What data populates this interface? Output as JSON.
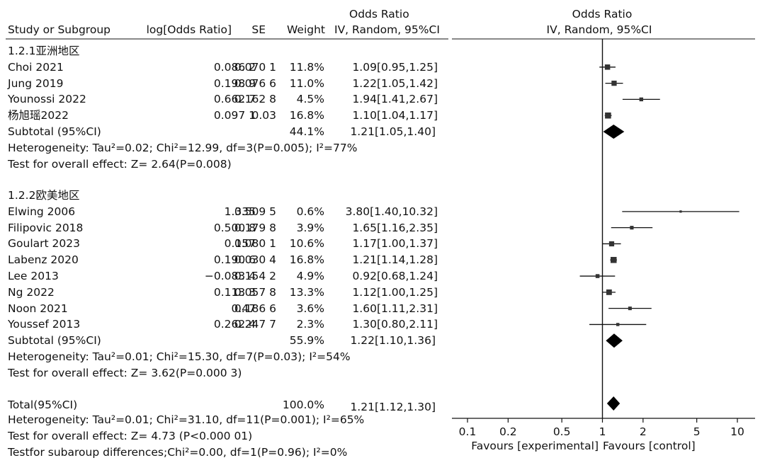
{
  "header": {
    "study": "Study or Subgroup",
    "logor": "log[Odds Ratio]",
    "se": "SE",
    "weight": "Weight",
    "or_title": "Odds Ratio",
    "or_method": "IV, Random, 95%CI",
    "plot_title": "Odds Ratio",
    "plot_method": "IV, Random, 95%CI"
  },
  "groups": [
    {
      "label": "1.2.1亚洲地区",
      "studies": [
        {
          "name": "Choi 2021",
          "logor": "0.086 2",
          "se": "0.070 1",
          "weight": "11.8%",
          "ci": "1.09[0.95,1.25]",
          "or": 1.09,
          "lo": 0.95,
          "hi": 1.25,
          "w": 11.8
        },
        {
          "name": "Jung 2019",
          "logor": "0.198 9",
          "se": "0.076 6",
          "weight": "11.0%",
          "ci": "1.22[1.05,1.42]",
          "or": 1.22,
          "lo": 1.05,
          "hi": 1.42,
          "w": 11.0
        },
        {
          "name": "Younossi 2022",
          "logor": "0.662 7",
          "se": "0.162 8",
          "weight": "4.5%",
          "ci": "1.94[1.41,2.67]",
          "or": 1.94,
          "lo": 1.41,
          "hi": 2.67,
          "w": 4.5
        },
        {
          "name": "杨旭瑶2022",
          "logor": "0.097 1",
          "se": "0.03",
          "weight": "16.8%",
          "ci": "1.10[1.04,1.17]",
          "or": 1.1,
          "lo": 1.04,
          "hi": 1.17,
          "w": 16.8
        }
      ],
      "subtotal": {
        "label": "Subtotal (95%CI)",
        "weight": "44.1%",
        "ci": "1.21[1.05,1.40]",
        "or": 1.21,
        "lo": 1.05,
        "hi": 1.4
      },
      "heterogeneity": "Heterogeneity: Tau²=0.02; Chi²=12.99, df=3(P=0.005); I²=77%",
      "overall": "Test for overall effect: Z= 2.64(P=0.008)"
    },
    {
      "label": "1.2.2欧美地区",
      "studies": [
        {
          "name": "Elwing 2006",
          "logor": "1.335",
          "se": "0.509 5",
          "weight": "0.6%",
          "ci": "3.80[1.40,10.32]",
          "or": 3.8,
          "lo": 1.4,
          "hi": 10.32,
          "w": 0.6
        },
        {
          "name": "Filipovic 2018",
          "logor": "0.500 8",
          "se": "0.179 8",
          "weight": "3.9%",
          "ci": "1.65[1.16,2.35]",
          "or": 1.65,
          "lo": 1.16,
          "hi": 2.35,
          "w": 3.9
        },
        {
          "name": "Goulart 2023",
          "logor": "0.157",
          "se": "0.080 1",
          "weight": "10.6%",
          "ci": "1.17[1.00,1.37]",
          "or": 1.17,
          "lo": 1.0,
          "hi": 1.37,
          "w": 10.6
        },
        {
          "name": "Labenz 2020",
          "logor": "0.190 6",
          "se": "0.030 4",
          "weight": "16.8%",
          "ci": "1.21[1.14,1.28]",
          "or": 1.21,
          "lo": 1.14,
          "hi": 1.28,
          "w": 16.8
        },
        {
          "name": "Lee 2013",
          "logor": "−0.083 4",
          "se": "0.154 2",
          "weight": "4.9%",
          "ci": "0.92[0.68,1.24]",
          "or": 0.92,
          "lo": 0.68,
          "hi": 1.24,
          "w": 4.9
        },
        {
          "name": "Ng 2022",
          "logor": "0.113 3",
          "se": "0.057 8",
          "weight": "13.3%",
          "ci": "1.12[1.00,1.25]",
          "or": 1.12,
          "lo": 1.0,
          "hi": 1.25,
          "w": 13.3
        },
        {
          "name": "Noon 2021",
          "logor": "0.47",
          "se": "0.186 6",
          "weight": "3.6%",
          "ci": "1.60[1.11,2.31]",
          "or": 1.6,
          "lo": 1.11,
          "hi": 2.31,
          "w": 3.6
        },
        {
          "name": "Youssef 2013",
          "logor": "0.262 4",
          "se": "0.247 7",
          "weight": "2.3%",
          "ci": "1.30[0.80,2.11]",
          "or": 1.3,
          "lo": 0.8,
          "hi": 2.11,
          "w": 2.3
        }
      ],
      "subtotal": {
        "label": "Subtotal (95%CI)",
        "weight": "55.9%",
        "ci": "1.22[1.10,1.36]",
        "or": 1.22,
        "lo": 1.1,
        "hi": 1.36
      },
      "heterogeneity": "Heterogeneity: Tau²=0.01; Chi²=15.30, df=7(P=0.03); I²=54%",
      "overall": "Test for overall effect: Z= 3.62(P=0.000 3)"
    }
  ],
  "total": {
    "label": "Total(95%CI)",
    "weight": "100.0%",
    "ci": "1.21[1.12,1.30]",
    "or": 1.21,
    "lo": 1.12,
    "hi": 1.3
  },
  "total_heterogeneity": "Heterogeneity: Tau²=0.01; Chi²=31.10, df=11(P=0.001); I²=65%",
  "total_overall": "Test for overall effect: Z= 4.73 (P<0.000 01)",
  "subgroup_diff": "Testfor subaroup differences;Chi²=0.00, df=1(P=0.96); I²=0%",
  "chart_data": {
    "type": "forest",
    "x_scale": "log",
    "xlim": [
      0.1,
      10
    ],
    "reference_line": 1,
    "ticks": [
      0.1,
      0.2,
      0.5,
      1,
      2,
      5,
      10
    ],
    "tick_labels": [
      "0.1",
      "0.2",
      "0.5",
      "1",
      "2",
      "5",
      "10"
    ],
    "xlabel_left": "Favours [experimental]",
    "xlabel_right": "Favours [control]",
    "grid": false
  }
}
